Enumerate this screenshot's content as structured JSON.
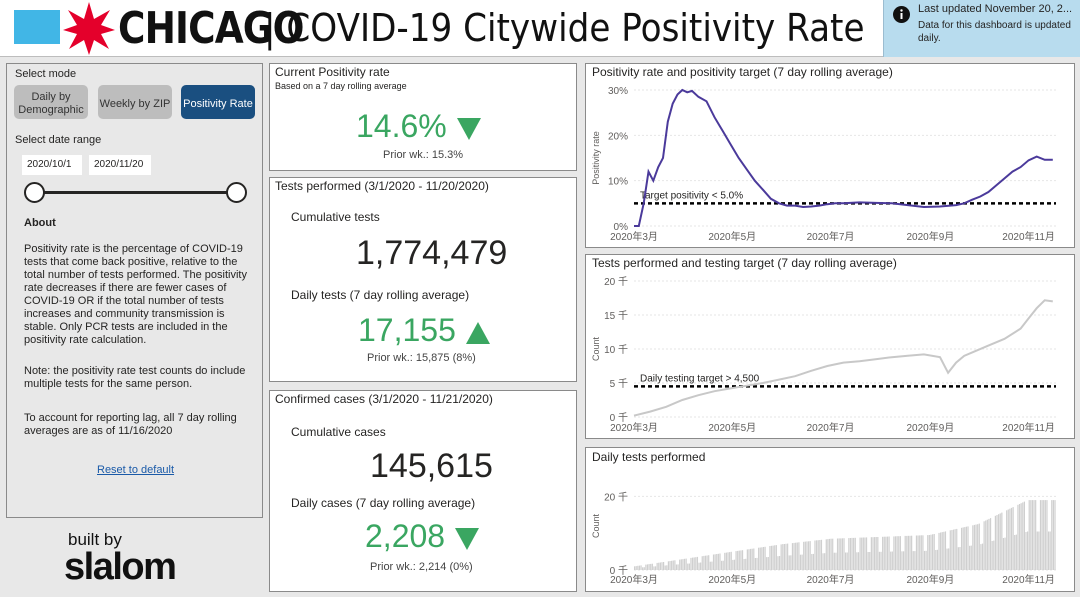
{
  "header": {
    "brand": "CHICAGO",
    "title": "| COVID-19 Citywide Positivity Rate",
    "notice_line1": "Last updated November 20, 2...",
    "notice_line2": "Data for this dashboard is updated daily.",
    "colors": {
      "flag_blue": "#41b6e6",
      "star_red": "#e4002b"
    }
  },
  "sidebar": {
    "select_mode_label": "Select mode",
    "mode_buttons": [
      {
        "label": "Daily by Demographic",
        "active": false
      },
      {
        "label": "Weekly by ZIP",
        "active": false
      },
      {
        "label": "Positivity Rate",
        "active": true
      }
    ],
    "date_range_label": "Select date range",
    "date_start": "2020/10/1",
    "date_end": "2020/11/20",
    "about_title": "About",
    "about_p1": "Positivity rate is the percentage of COVID-19 tests that come back positive, relative to the total number of tests performed.  The positivity rate decreases if there are fewer cases of COVID-19 OR if the total number of tests increases and community transmission is stable. Only PCR tests are included in the positivity rate calculation.",
    "about_p2": "Note: the positivity rate test counts do include multiple tests for the same person.",
    "about_p3": "To account for reporting lag, all 7 day rolling averages are as of 11/16/2020",
    "reset_label": "Reset to default",
    "built_by": "built by",
    "slalom": "slalom"
  },
  "positivity_card": {
    "title": "Current Positivity rate",
    "subtitle": "Based on a 7 day rolling average",
    "value": "14.6%",
    "prior": "Prior wk.: 15.3%"
  },
  "tests_card": {
    "title": "Tests performed (3/1/2020 - 11/20/2020)",
    "cumulative_label": "Cumulative tests",
    "cumulative_value": "1,774,479",
    "daily_label": "Daily tests (7 day rolling average)",
    "daily_value": "17,155",
    "prior": "Prior wk.: 15,875 (8%)"
  },
  "cases_card": {
    "title": "Confirmed cases (3/1/2020 - 11/21/2020)",
    "cumulative_label": "Cumulative cases",
    "cumulative_value": "145,615",
    "daily_label": "Daily cases (7 day rolling average)",
    "daily_value": "2,208",
    "prior": "Prior wk.: 2,214 (0%)"
  },
  "chart_data": [
    {
      "type": "line",
      "title": "Positivity rate and positivity target (7 day rolling average)",
      "ylabel": "Positivity rate",
      "xlabel": "",
      "x_ticks": [
        "2020年3月",
        "2020年5月",
        "2020年7月",
        "2020年9月",
        "2020年11月"
      ],
      "y_ticks": [
        "0%",
        "10%",
        "20%",
        "30%"
      ],
      "ylim": [
        0,
        30
      ],
      "target_label": "Target positivity < 5.0%",
      "target_value": 5.0,
      "series": [
        {
          "name": "Positivity rate",
          "color": "#4b3a9b",
          "x_days": [
            0,
            3,
            6,
            9,
            12,
            15,
            18,
            21,
            24,
            27,
            30,
            33,
            36,
            40,
            45,
            50,
            55,
            60,
            65,
            70,
            75,
            80,
            85,
            90,
            95,
            100,
            105,
            110,
            115,
            120,
            125,
            130,
            140,
            150,
            160,
            170,
            180,
            190,
            200,
            205,
            210,
            215,
            220,
            225,
            230,
            235,
            240,
            245,
            250,
            255,
            260
          ],
          "values": [
            0,
            0,
            5,
            12,
            10,
            13,
            15,
            23,
            27,
            29,
            30,
            29.5,
            29.8,
            28.5,
            27.5,
            24,
            21,
            18,
            15,
            12.5,
            10,
            8,
            6,
            5,
            4.5,
            4.5,
            4.2,
            4.3,
            4.5,
            4.8,
            5,
            5,
            5.2,
            5.1,
            5,
            4.6,
            4.2,
            4.3,
            4.6,
            5,
            5.8,
            6.5,
            7.5,
            9,
            10.5,
            12,
            13,
            14.5,
            15.3,
            14.6,
            14.6
          ]
        }
      ]
    },
    {
      "type": "line",
      "title": "Tests performed and testing target (7 day rolling average)",
      "ylabel": "Count",
      "xlabel": "",
      "x_ticks": [
        "2020年3月",
        "2020年5月",
        "2020年7月",
        "2020年9月",
        "2020年11月"
      ],
      "y_ticks": [
        "0 千",
        "5 千",
        "10 千",
        "15 千",
        "20 千"
      ],
      "ylim": [
        0,
        20000
      ],
      "target_label": "Daily testing target > 4,500",
      "target_value": 4500,
      "series": [
        {
          "name": "Tests (7 day avg)",
          "color": "#c8c8c8",
          "x_days": [
            0,
            10,
            20,
            30,
            40,
            50,
            60,
            70,
            80,
            90,
            100,
            110,
            120,
            130,
            140,
            150,
            160,
            170,
            180,
            190,
            195,
            200,
            205,
            210,
            220,
            230,
            240,
            245,
            250,
            255,
            260
          ],
          "values": [
            200,
            800,
            1500,
            2500,
            3200,
            3800,
            4200,
            4600,
            5000,
            5500,
            6000,
            6800,
            7500,
            8000,
            8200,
            8500,
            8800,
            9000,
            9200,
            8800,
            6500,
            8000,
            9000,
            9500,
            10500,
            11500,
            13000,
            14500,
            16000,
            17155,
            17000
          ]
        }
      ]
    },
    {
      "type": "bar",
      "title": "Daily tests performed",
      "ylabel": "Count",
      "xlabel": "",
      "x_ticks": [
        "2020年3月",
        "2020年5月",
        "2020年7月",
        "2020年9月",
        "2020年11月"
      ],
      "y_ticks": [
        "0 千",
        "20 千"
      ],
      "ylim": [
        0,
        25000
      ],
      "values_trend_by_month": {
        "Mar": 1000,
        "Apr": 3000,
        "May": 5000,
        "Jun": 7000,
        "Jul": 8500,
        "Aug": 9000,
        "Sep": 9500,
        "Oct": 12500,
        "Nov": 19000
      }
    }
  ]
}
